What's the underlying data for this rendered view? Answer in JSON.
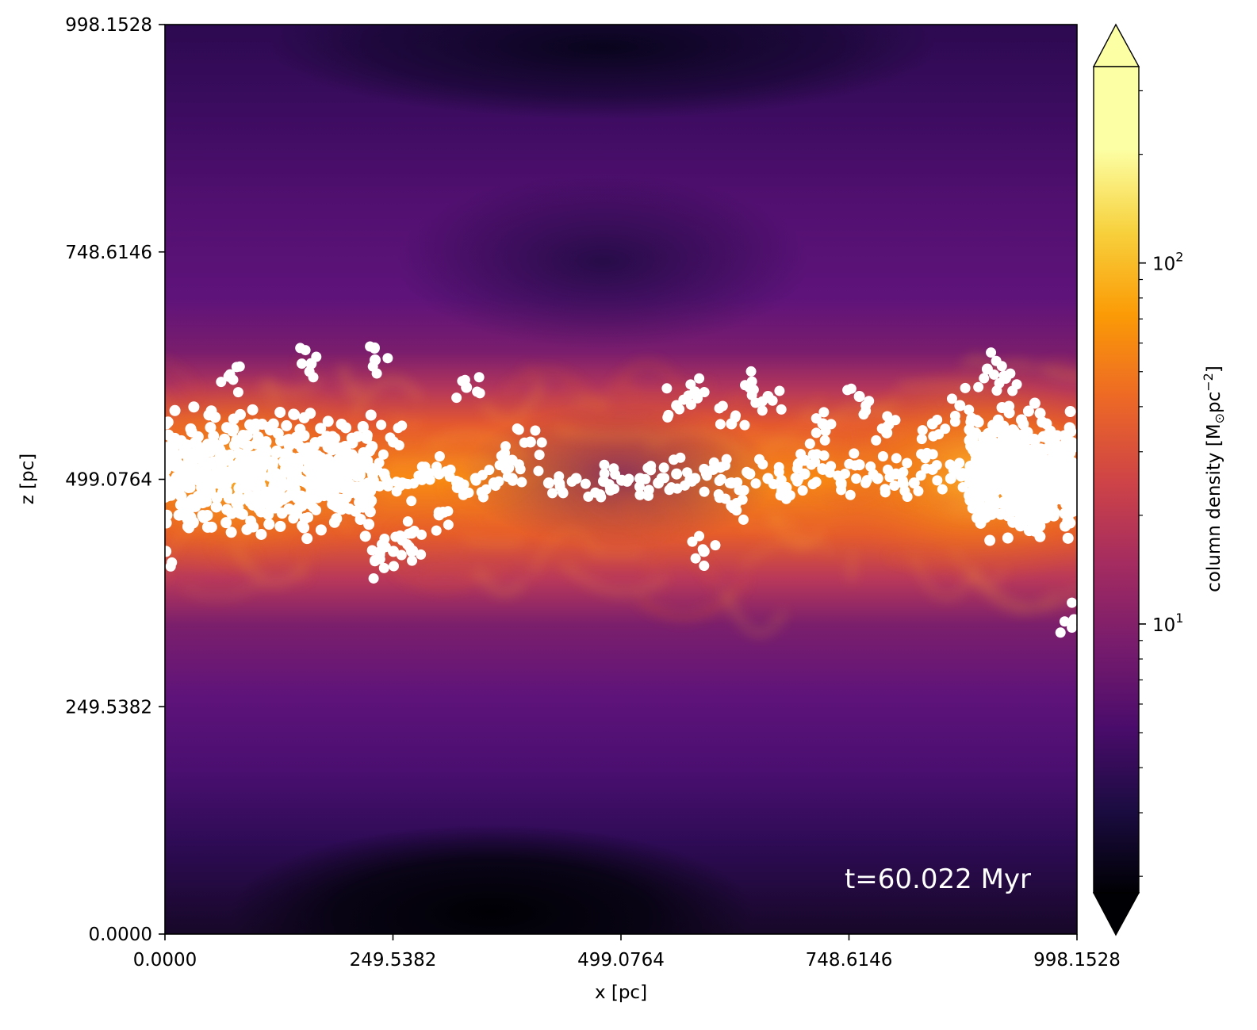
{
  "chart_data": {
    "type": "heatmap",
    "title": "",
    "xlabel": "x [pc]",
    "ylabel": "z [pc]",
    "xlim": [
      0.0,
      998.1528
    ],
    "ylim": [
      0.0,
      998.1528
    ],
    "x_ticks": [
      0.0,
      249.5382,
      499.0764,
      748.6146,
      998.1528
    ],
    "x_tick_labels": [
      "0.0000",
      "249.5382",
      "499.0764",
      "748.6146",
      "998.1528"
    ],
    "y_ticks": [
      0.0,
      249.5382,
      499.0764,
      748.6146,
      998.1528
    ],
    "y_tick_labels": [
      "0.0000",
      "249.5382",
      "499.0764",
      "748.6146",
      "998.1528"
    ],
    "colormap": "inferno",
    "colorbar": {
      "label_main": "column density [M",
      "label_sub": "⊙",
      "label_mid": "pc",
      "label_sup": "−2",
      "label_end": "]",
      "scale": "log",
      "range": [
        1.8,
        350
      ],
      "extend": "both",
      "major_ticks": [
        {
          "base": "10",
          "exp": "1",
          "value": 10
        },
        {
          "base": "10",
          "exp": "2",
          "value": 100
        }
      ],
      "minor_ticks": [
        2,
        3,
        4,
        5,
        6,
        7,
        8,
        9,
        20,
        30,
        40,
        50,
        60,
        70,
        80,
        90,
        200,
        300
      ]
    },
    "annotation": "t=60.022 Myr",
    "density_field": {
      "description_of_values": "column density peaks (~100-300) in a horizontal filamentary disk near z≈499 pc, drops to ~5-10 above/below, darkest (~2) near bottom center and top center",
      "disk_center_z": 499.0764,
      "disk_value": 150,
      "background_value": 7,
      "dark_regions": [
        {
          "x": 550,
          "z": 40,
          "value": 1.9
        },
        {
          "x": 600,
          "z": 960,
          "value": 2.5
        },
        {
          "x": 500,
          "z": 730,
          "value": 3.5
        }
      ]
    },
    "star_particles": {
      "color": "#ffffff",
      "dense_clusters": [
        {
          "x_range": [
            0,
            230
          ],
          "z_range": [
            420,
            590
          ],
          "note": "dense left cluster"
        },
        {
          "x_range": [
            880,
            998
          ],
          "z_range": [
            420,
            590
          ],
          "note": "dense right cluster"
        }
      ],
      "points": [
        [
          0,
          500
        ],
        [
          20,
          510
        ],
        [
          40,
          490
        ],
        [
          60,
          520
        ],
        [
          80,
          480
        ],
        [
          100,
          505
        ],
        [
          120,
          495
        ],
        [
          140,
          515
        ],
        [
          160,
          485
        ],
        [
          180,
          500
        ],
        [
          200,
          510
        ],
        [
          220,
          490
        ],
        [
          240,
          505
        ],
        [
          260,
          495
        ],
        [
          280,
          500
        ],
        [
          300,
          505
        ],
        [
          320,
          490
        ],
        [
          340,
          500
        ],
        [
          360,
          495
        ],
        [
          380,
          500
        ],
        [
          420,
          495
        ],
        [
          450,
          500
        ],
        [
          480,
          497
        ],
        [
          500,
          498
        ],
        [
          520,
          500
        ],
        [
          540,
          495
        ],
        [
          560,
          505
        ],
        [
          580,
          500
        ],
        [
          600,
          510
        ],
        [
          620,
          495
        ],
        [
          640,
          505
        ],
        [
          660,
          500
        ],
        [
          680,
          490
        ],
        [
          700,
          505
        ],
        [
          720,
          510
        ],
        [
          740,
          495
        ],
        [
          760,
          515
        ],
        [
          780,
          500
        ],
        [
          800,
          505
        ],
        [
          820,
          495
        ],
        [
          840,
          510
        ],
        [
          860,
          500
        ],
        [
          880,
          505
        ],
        [
          900,
          495
        ],
        [
          920,
          500
        ],
        [
          940,
          510
        ],
        [
          960,
          490
        ],
        [
          980,
          505
        ],
        [
          998,
          500
        ],
        [
          70,
          612
        ],
        [
          160,
          626
        ],
        [
          230,
          630
        ],
        [
          250,
          540
        ],
        [
          270,
          420
        ],
        [
          300,
          460
        ],
        [
          330,
          600
        ],
        [
          380,
          520
        ],
        [
          560,
          580
        ],
        [
          580,
          595
        ],
        [
          620,
          560
        ],
        [
          640,
          600
        ],
        [
          660,
          590
        ],
        [
          700,
          520
        ],
        [
          720,
          560
        ],
        [
          760,
          590
        ],
        [
          790,
          550
        ],
        [
          840,
          560
        ],
        [
          870,
          580
        ],
        [
          900,
          620
        ],
        [
          920,
          610
        ],
        [
          940,
          470
        ],
        [
          980,
          490
        ],
        [
          995,
          345
        ],
        [
          230,
          410
        ],
        [
          250,
          420
        ],
        [
          270,
          440
        ],
        [
          150,
          470
        ],
        [
          400,
          540
        ],
        [
          620,
          470
        ],
        [
          590,
          420
        ],
        [
          1,
          420
        ]
      ]
    }
  }
}
